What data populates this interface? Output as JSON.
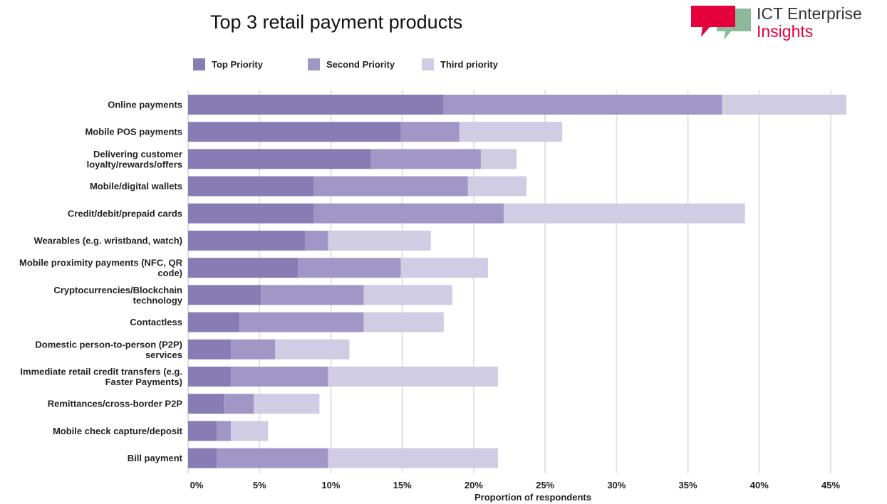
{
  "chart_data": {
    "type": "bar",
    "orientation": "horizontal",
    "stacked": true,
    "title": "Top 3 retail payment products",
    "xlabel": "Proportion of respondents",
    "ylabel": "",
    "xlim": [
      0,
      45
    ],
    "x_ticks": [
      0,
      5,
      10,
      15,
      20,
      25,
      30,
      35,
      40,
      45
    ],
    "x_tick_labels": [
      "0%",
      "5%",
      "10%",
      "15%",
      "20%",
      "25%",
      "30%",
      "35%",
      "40%",
      "45%"
    ],
    "grid": true,
    "legend_position": "top-left",
    "categories": [
      "Online payments",
      "Mobile POS payments",
      "Delivering customer loyalty/rewards/offers",
      "Mobile/digital wallets",
      "Credit/debit/prepaid cards",
      "Wearables (e.g. wristband, watch)",
      "Mobile proximity payments (NFC, QR code)",
      "Cryptocurrencies/Blockchain technology",
      "Contactless",
      "Domestic person-to-person (P2P) services",
      "Immediate retail credit transfers (e.g. Faster Payments)",
      "Remittances/cross-border P2P",
      "Mobile check capture/deposit",
      "Bill payment"
    ],
    "category_lines": [
      [
        "Online payments"
      ],
      [
        "Mobile POS payments"
      ],
      [
        "Delivering customer",
        "loyalty/rewards/offers"
      ],
      [
        "Mobile/digital wallets"
      ],
      [
        "Credit/debit/prepaid cards"
      ],
      [
        "Wearables (e.g. wristband, watch)"
      ],
      [
        "Mobile proximity payments (NFC, QR",
        "code)"
      ],
      [
        "Cryptocurrencies/Blockchain",
        "technology"
      ],
      [
        "Contactless"
      ],
      [
        "Domestic person-to-person (P2P)",
        "services"
      ],
      [
        "Immediate retail credit transfers (e.g.",
        "Faster Payments)"
      ],
      [
        "Remittances/cross-border P2P"
      ],
      [
        "Mobile check capture/deposit"
      ],
      [
        "Bill payment"
      ]
    ],
    "series": [
      {
        "name": "Top Priority",
        "color": "#877cb4",
        "values": [
          17.9,
          14.9,
          12.8,
          8.8,
          8.8,
          8.2,
          7.7,
          5.1,
          3.6,
          3.0,
          3.0,
          2.5,
          2.0,
          2.0
        ]
      },
      {
        "name": "Second Priority",
        "color": "#a197c6",
        "values": [
          19.5,
          4.1,
          7.7,
          10.8,
          13.3,
          1.6,
          7.2,
          7.2,
          8.7,
          3.1,
          6.8,
          2.1,
          1.0,
          7.8
        ]
      },
      {
        "name": "Third priority",
        "color": "#d0cce3",
        "values": [
          8.7,
          7.2,
          2.5,
          4.1,
          16.9,
          7.2,
          6.1,
          6.2,
          5.6,
          5.2,
          11.9,
          4.6,
          2.6,
          11.9
        ]
      }
    ]
  },
  "logo": {
    "line1": "ICT Enterprise",
    "line2": "Insights",
    "red": "#e4003b",
    "green": "#8db99b"
  }
}
